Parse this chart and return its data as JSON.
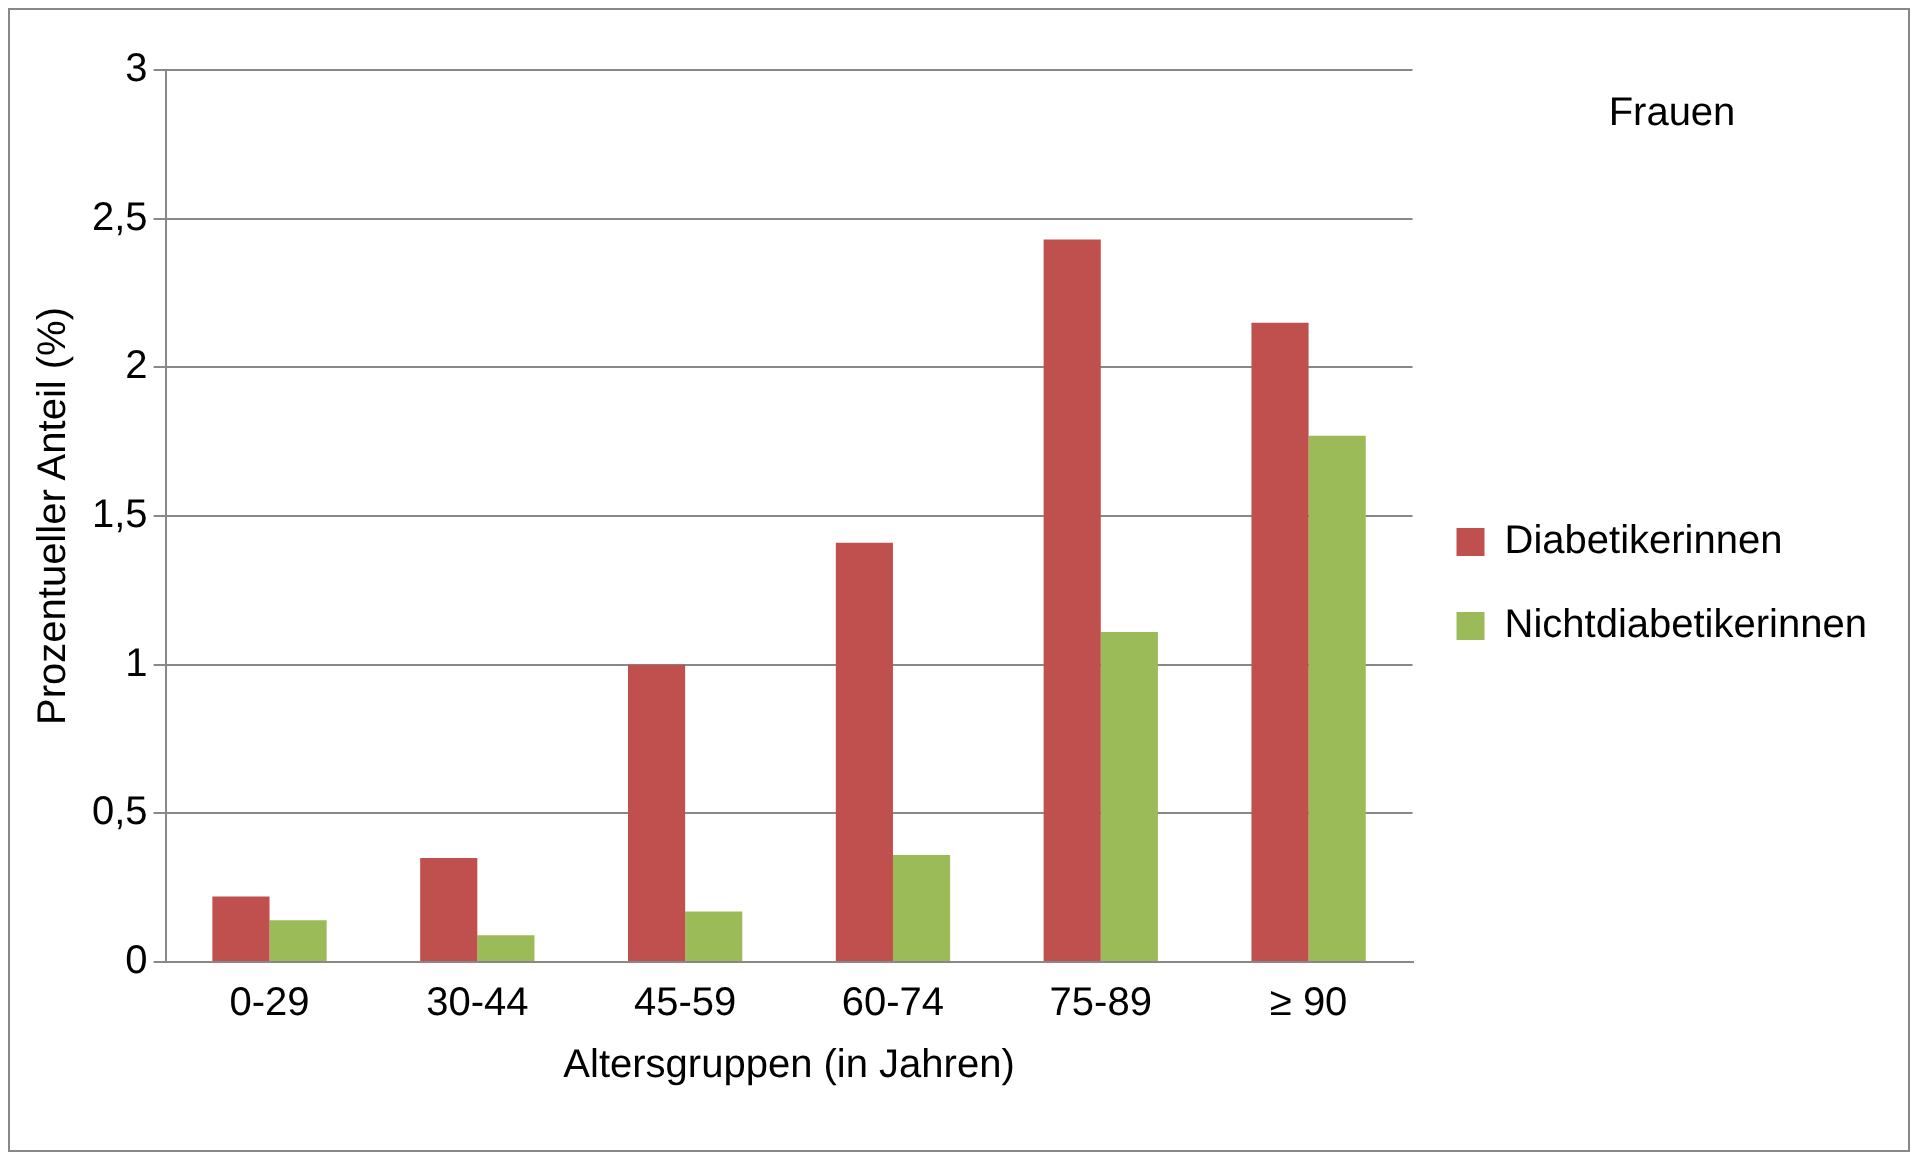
{
  "chart_data": {
    "type": "bar",
    "xlabel": "Altersgruppen (in Jahren)",
    "ylabel": "Prozentueller Anteil (%)",
    "categories": [
      "0-29",
      "30-44",
      "45-59",
      "60-74",
      "75-89",
      "≥ 90"
    ],
    "series": [
      {
        "name": "Diabetikerinnen",
        "color": "#c0504d",
        "values": [
          0.22,
          0.35,
          1.0,
          1.41,
          2.43,
          2.15
        ]
      },
      {
        "name": "Nichtdiabetikerinnen",
        "color": "#9bbb59",
        "values": [
          0.14,
          0.09,
          0.17,
          0.36,
          1.11,
          1.77
        ]
      }
    ],
    "ylim": [
      0,
      3
    ],
    "yticks": [
      0,
      {
        "value": 0.5,
        "label": "0,5"
      },
      1,
      {
        "value": 1.5,
        "label": "1,5"
      },
      2,
      {
        "value": 2.5,
        "label": "2,5"
      },
      3
    ],
    "grid": "y",
    "legend": "right",
    "annotations": [
      "Frauen"
    ]
  }
}
